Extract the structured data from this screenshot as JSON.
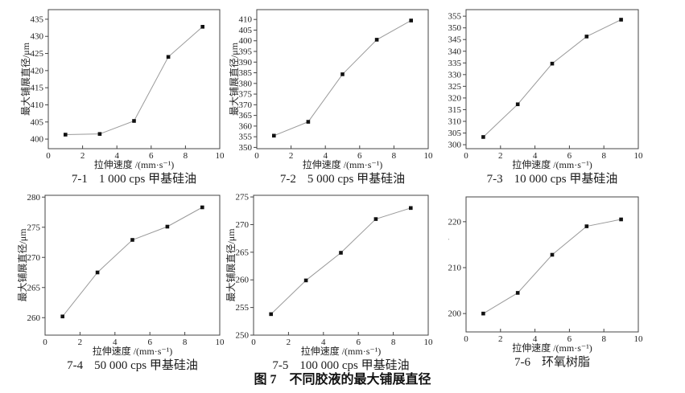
{
  "figure": {
    "caption": "图 7　不同胶液的最大铺展直径"
  },
  "colors": {
    "line": "#9a9a9a",
    "marker": "#111111",
    "axis": "#444444",
    "text": "#222222"
  },
  "chart_data": [
    {
      "type": "line",
      "caption_index": "7-1",
      "caption_label": "1 000 cps 甲基硅油",
      "xlabel": "拉伸速度 /(mm·s⁻¹)",
      "ylabel": "最大铺展直径/μm",
      "x": [
        1,
        3,
        5,
        7,
        9
      ],
      "values": [
        401.3,
        401.5,
        405.3,
        424.0,
        432.8
      ],
      "xlim": [
        0,
        10
      ],
      "xticks": [
        0,
        2,
        4,
        6,
        8,
        10
      ],
      "ylim": [
        397.2,
        437.8
      ],
      "yticks": [
        400,
        405,
        410,
        415,
        420,
        425,
        430,
        435
      ],
      "grid": false,
      "legend": "none",
      "marker": "black-square"
    },
    {
      "type": "line",
      "caption_index": "7-2",
      "caption_label": "5 000 cps 甲基硅油",
      "xlabel": "拉伸速度 /(mm·s⁻¹)",
      "ylabel": "最大铺展直径/μm",
      "x": [
        1,
        3,
        5,
        7,
        9
      ],
      "values": [
        355.5,
        362.0,
        384.3,
        400.5,
        409.5
      ],
      "xlim": [
        0,
        10
      ],
      "xticks": [
        0,
        2,
        4,
        6,
        8,
        10
      ],
      "ylim": [
        349.4,
        414.6
      ],
      "yticks": [
        350,
        355,
        360,
        365,
        370,
        375,
        380,
        385,
        390,
        395,
        400,
        405,
        410
      ],
      "grid": false,
      "legend": "none",
      "marker": "black-square"
    },
    {
      "type": "line",
      "caption_index": "7-3",
      "caption_label": "10 000 cps 甲基硅油",
      "xlabel": "拉伸速度 /(mm·s⁻¹)",
      "ylabel": "最大铺展直径/μm",
      "x": [
        1,
        3,
        5,
        7,
        9
      ],
      "values": [
        303.3,
        317.3,
        334.7,
        346.3,
        353.5
      ],
      "xlim": [
        0,
        10
      ],
      "xticks": [
        0,
        2,
        4,
        6,
        8,
        10
      ],
      "ylim": [
        298.3,
        357.8
      ],
      "yticks": [
        300,
        305,
        310,
        315,
        320,
        325,
        330,
        335,
        340,
        345,
        350,
        355
      ],
      "grid": false,
      "legend": "none",
      "marker": "black-square"
    },
    {
      "type": "line",
      "caption_index": "7-4",
      "caption_label": "50 000 cps 甲基硅油",
      "xlabel": "拉伸速度 /(mm·s⁻¹)",
      "ylabel": "最大铺展直径/μm",
      "x": [
        1,
        3,
        5,
        7,
        9
      ],
      "values": [
        260.2,
        267.5,
        272.9,
        275.1,
        278.3
      ],
      "xlim": [
        0,
        10
      ],
      "xticks": [
        0,
        2,
        4,
        6,
        8,
        10
      ],
      "ylim": [
        257.1,
        280.3
      ],
      "yticks": [
        260,
        265,
        270,
        275,
        280
      ],
      "grid": false,
      "legend": "none",
      "marker": "black-square"
    },
    {
      "type": "line",
      "caption_index": "7-5",
      "caption_label": "100 000 cps 甲基硅油",
      "xlabel": "拉伸速度 /(mm·s⁻¹)",
      "ylabel": "最大铺展直径/μm",
      "x": [
        1,
        3,
        5,
        7,
        9
      ],
      "values": [
        253.8,
        259.9,
        264.9,
        271.0,
        273.0
      ],
      "xlim": [
        0,
        10
      ],
      "xticks": [
        0,
        2,
        4,
        6,
        8,
        10
      ],
      "ylim": [
        250,
        275.3
      ],
      "yticks": [
        250,
        255,
        260,
        265,
        270,
        275
      ],
      "grid": false,
      "legend": "none",
      "marker": "black-square"
    },
    {
      "type": "line",
      "caption_index": "7-6",
      "caption_label": "环氧树脂",
      "xlabel": "拉伸速度 /(mm·s⁻¹)",
      "ylabel": "最大铺展直径/μm",
      "x": [
        1,
        3,
        5,
        7,
        9
      ],
      "values": [
        200.0,
        204.5,
        212.8,
        219.0,
        220.5
      ],
      "xlim": [
        0,
        10
      ],
      "xticks": [
        0,
        2,
        4,
        6,
        8,
        10
      ],
      "ylim": [
        196,
        225.4
      ],
      "yticks": [
        200,
        210,
        220
      ],
      "grid": false,
      "legend": "none",
      "marker": "black-square"
    }
  ]
}
